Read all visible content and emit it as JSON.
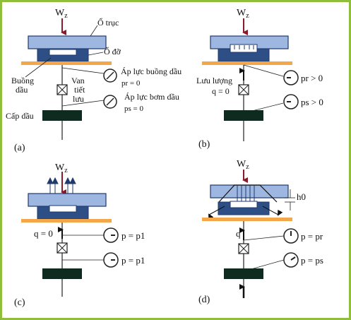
{
  "colors": {
    "border": "#8fbf3a",
    "shaft": "#9db7e0",
    "bearing": "#1f3a6e",
    "base_plate": "#f4a64a",
    "pump": "#0f2a1f",
    "arrow": "#8b1a2b",
    "line": "#222222"
  },
  "icons": [
    "pressure-gauge-icon",
    "throttle-valve-icon",
    "down-arrow-icon",
    "up-arrow-icon"
  ],
  "panels": [
    {
      "label": "(a)",
      "load": "W",
      "load_sub": "z",
      "shaft_label": "Ổ trục",
      "bearing_label": "Ổ đỡ",
      "recess_label_line1": "Buồng",
      "recess_label_line2": "dầu",
      "valve_label_line1": "Van",
      "valve_label_line2": "tiết",
      "valve_label_line3": "lưu",
      "supply_label": "Cấp dầu",
      "gauge1_title": "Áp lực buồng dầu",
      "gauge1_value": "pr = 0",
      "gauge2_title": "Áp lực bơm dầu",
      "gauge2_value": "ps = 0"
    },
    {
      "label": "(b)",
      "load": "W",
      "load_sub": "z",
      "flow_label_line1": "Lưu lượng",
      "flow_label_line2": "q = 0",
      "gauge1_value": "pr > 0",
      "gauge2_value": "ps > 0"
    },
    {
      "label": "(c)",
      "load": "W",
      "load_sub": "z",
      "flow_label": "q = 0",
      "gauge1_value": "p = p1",
      "gauge2_value": "p = p1"
    },
    {
      "label": "(d)",
      "load": "W",
      "load_sub": "z",
      "gap_label": "h0",
      "flow_label": "q",
      "gauge1_value": "p = pr",
      "gauge2_value": "p = ps"
    }
  ]
}
